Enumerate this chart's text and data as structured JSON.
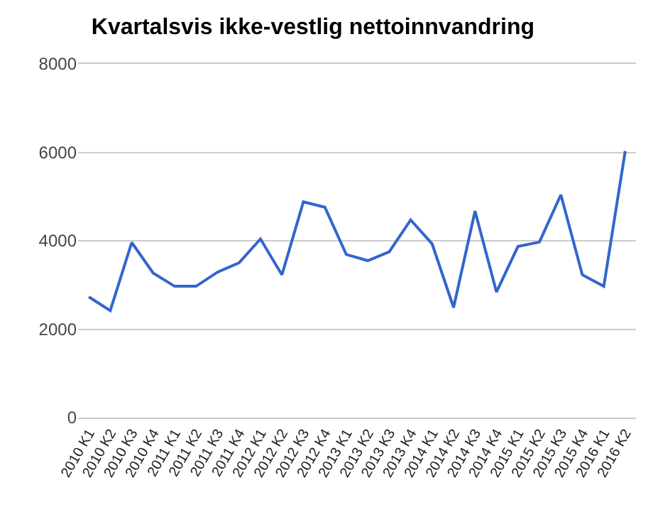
{
  "chart_data": {
    "type": "line",
    "title": "Kvartalsvis ikke-vestlig nettoinnvandring",
    "categories": [
      "2010 K1",
      "2010 K2",
      "2010 K3",
      "2010 K4",
      "2011 K1",
      "2011 K2",
      "2011 K3",
      "2011 K4",
      "2012 K1",
      "2012 K2",
      "2012 K3",
      "2012 K4",
      "2013 K1",
      "2013 K2",
      "2013 K3",
      "2013 K4",
      "2014 K1",
      "2014 K2",
      "2014 K3",
      "2014 K4",
      "2015 K1",
      "2015 K2",
      "2015 K3",
      "2015 K4",
      "2016 K1",
      "2016 K2"
    ],
    "series": [
      {
        "color": "#3366cc",
        "values": [
          2730,
          2420,
          3960,
          3270,
          2970,
          2970,
          3290,
          3500,
          4040,
          3230,
          4880,
          4760,
          3690,
          3550,
          3750,
          4470,
          3930,
          2490,
          4670,
          2840,
          3870,
          3970,
          5040,
          3230,
          2970,
          6030
        ]
      }
    ],
    "ylim": [
      0,
      8000
    ],
    "yticks": [
      0,
      2000,
      4000,
      6000,
      8000
    ],
    "grid": "y",
    "marker": "none",
    "line_style": "solid"
  }
}
